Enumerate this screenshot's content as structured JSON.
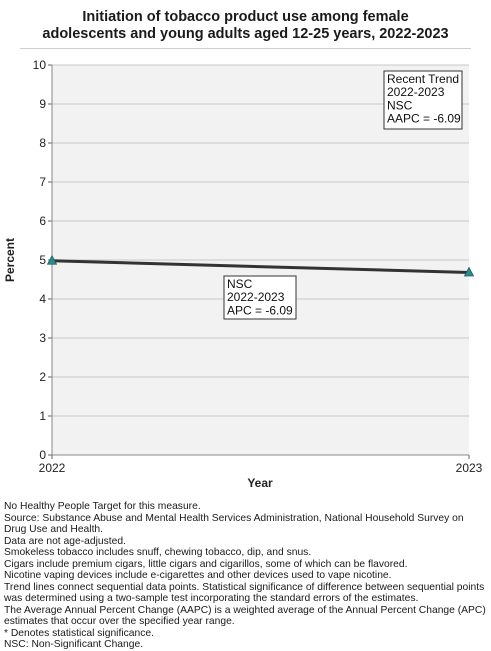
{
  "chart_data": {
    "type": "line",
    "title_lines": [
      "Initiation of tobacco product use among female",
      "adolescents and young adults aged 12-25 years, 2022-2023"
    ],
    "xlabel": "Year",
    "ylabel": "Percent",
    "x": [
      "2022",
      "2023"
    ],
    "series": [
      {
        "values": [
          4.98,
          4.68
        ],
        "color": "#2e8b8b"
      }
    ],
    "trend_line_color": "#333333",
    "ylim": [
      0,
      10
    ],
    "yticks": [
      "0",
      "1",
      "2",
      "3",
      "4",
      "5",
      "6",
      "7",
      "8",
      "9",
      "10"
    ],
    "grid": true,
    "plot_background": "#f2f2f2",
    "annotations": [
      {
        "id": "recent-trend",
        "lines": [
          "Recent Trend",
          "2022-2023",
          "NSC",
          "AAPC = -6.09"
        ]
      },
      {
        "id": "segment-trend",
        "lines": [
          "NSC",
          "2022-2023",
          "APC = -6.09"
        ]
      }
    ]
  },
  "footnotes": [
    "No Healthy People Target for this measure.",
    "Source: Substance Abuse and Mental Health Services Administration, National Household Survey on Drug Use and Health.",
    "Data are not age-adjusted.",
    "Smokeless tobacco includes snuff, chewing tobacco, dip, and snus.",
    "Cigars include premium cigars, little cigars and cigarillos, some of which can be flavored.",
    "Nicotine vaping devices include e-cigarettes and other devices used to vape nicotine.",
    "Trend lines connect sequential data points. Statistical significance of difference between sequential points was determined using a two-sample test incorporating the standard errors of the estimates.",
    "The Average Annual Percent Change (AAPC) is a weighted average of the Annual Percent Change (APC) estimates that occur over the specified year range.",
    "* Denotes statistical significance.",
    "NSC: Non-Significant Change."
  ]
}
